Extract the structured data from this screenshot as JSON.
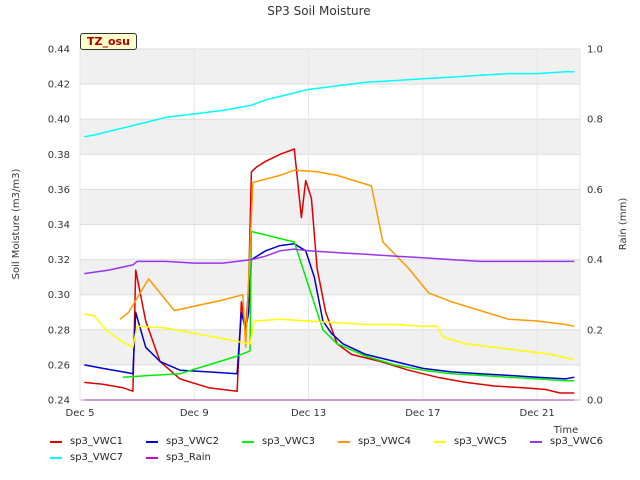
{
  "chart_data": {
    "type": "line",
    "title": "SP3 Soil Moisture",
    "ylabel": "Soil Moisture (m3/m3)",
    "y2label": "Rain (mm)",
    "xlabel": "Time",
    "badge": "TZ_osu",
    "x_ticks": [
      "Dec 5",
      "Dec 9",
      "Dec 13",
      "Dec 17",
      "Dec 21"
    ],
    "xlim": [
      5,
      22.5
    ],
    "ylim": [
      0.24,
      0.44
    ],
    "y_ticks": [
      "0.24",
      "0.26",
      "0.28",
      "0.30",
      "0.32",
      "0.34",
      "0.36",
      "0.38",
      "0.40",
      "0.42",
      "0.44"
    ],
    "y2lim": [
      0.0,
      1.0
    ],
    "y2_ticks": [
      "0.0",
      "0.2",
      "0.4",
      "0.6",
      "0.8",
      "1.0"
    ],
    "grid": true,
    "legend_position": "bottom",
    "series": [
      {
        "name": "sp3_VWC1",
        "color": "#dd0000",
        "axis": "left",
        "x": [
          5.15,
          5.8,
          6.5,
          6.85,
          6.95,
          7.3,
          7.8,
          8.5,
          9.5,
          10.5,
          10.65,
          10.8,
          10.9,
          11.0,
          11.2,
          11.5,
          12.0,
          12.5,
          12.75,
          12.9,
          13.1,
          13.3,
          13.6,
          14.0,
          14.5,
          15.5,
          16.5,
          17.5,
          18.5,
          19.5,
          20.5,
          21.3,
          21.8,
          22.0,
          22.3
        ],
        "y": [
          0.25,
          0.249,
          0.247,
          0.245,
          0.314,
          0.285,
          0.262,
          0.252,
          0.247,
          0.245,
          0.296,
          0.28,
          0.305,
          0.37,
          0.373,
          0.376,
          0.38,
          0.383,
          0.344,
          0.365,
          0.355,
          0.315,
          0.29,
          0.272,
          0.266,
          0.262,
          0.257,
          0.253,
          0.25,
          0.248,
          0.247,
          0.246,
          0.244,
          0.244,
          0.244
        ]
      },
      {
        "name": "sp3_VWC2",
        "color": "#0000cc",
        "axis": "left",
        "x": [
          5.15,
          5.8,
          6.5,
          6.85,
          6.95,
          7.3,
          7.8,
          8.5,
          9.5,
          10.5,
          10.65,
          10.8,
          10.9,
          11.0,
          11.5,
          12.0,
          12.5,
          12.9,
          13.2,
          13.5,
          13.8,
          14.2,
          15.0,
          16.0,
          17.0,
          18.0,
          19.0,
          20.0,
          21.0,
          22.0,
          22.3
        ],
        "y": [
          0.26,
          0.258,
          0.256,
          0.255,
          0.29,
          0.27,
          0.262,
          0.257,
          0.256,
          0.255,
          0.29,
          0.28,
          0.29,
          0.32,
          0.325,
          0.328,
          0.329,
          0.325,
          0.31,
          0.285,
          0.278,
          0.272,
          0.266,
          0.262,
          0.258,
          0.256,
          0.255,
          0.254,
          0.253,
          0.252,
          0.253
        ]
      },
      {
        "name": "sp3_VWC3",
        "color": "#00ee00",
        "axis": "left",
        "x": [
          6.5,
          7.5,
          8.5,
          9.5,
          10.5,
          10.95,
          11.0,
          11.5,
          12.0,
          12.5,
          12.9,
          13.2,
          13.5,
          14.0,
          15.0,
          16.0,
          17.0,
          18.0,
          19.0,
          20.0,
          21.0,
          22.0,
          22.3
        ],
        "y": [
          0.253,
          0.254,
          0.255,
          0.26,
          0.265,
          0.268,
          0.336,
          0.334,
          0.332,
          0.33,
          0.31,
          0.295,
          0.28,
          0.272,
          0.265,
          0.26,
          0.257,
          0.255,
          0.254,
          0.253,
          0.252,
          0.251,
          0.251
        ]
      },
      {
        "name": "sp3_VWC4",
        "color": "#ff9900",
        "axis": "left",
        "x": [
          6.4,
          6.7,
          7.4,
          8.3,
          10.0,
          10.7,
          10.8,
          11.05,
          12.0,
          12.5,
          13.3,
          14.0,
          14.8,
          15.2,
          15.6,
          16.5,
          17.2,
          18.0,
          19.0,
          20.0,
          21.0,
          22.0,
          22.3
        ],
        "y": [
          0.286,
          0.29,
          0.309,
          0.291,
          0.297,
          0.3,
          0.27,
          0.364,
          0.368,
          0.371,
          0.37,
          0.368,
          0.364,
          0.362,
          0.33,
          0.315,
          0.301,
          0.296,
          0.291,
          0.286,
          0.285,
          0.283,
          0.282
        ]
      },
      {
        "name": "sp3_VWC5",
        "color": "#ffff00",
        "axis": "left",
        "x": [
          5.15,
          5.5,
          5.9,
          6.5,
          6.85,
          7.0,
          8.0,
          9.0,
          10.0,
          10.95,
          11.1,
          12.0,
          13.0,
          14.0,
          15.0,
          16.0,
          17.0,
          17.5,
          17.7,
          18.5,
          19.5,
          20.5,
          21.5,
          22.0,
          22.3
        ],
        "y": [
          0.289,
          0.288,
          0.28,
          0.273,
          0.27,
          0.282,
          0.281,
          0.278,
          0.275,
          0.272,
          0.285,
          0.286,
          0.285,
          0.284,
          0.283,
          0.283,
          0.282,
          0.282,
          0.276,
          0.272,
          0.27,
          0.268,
          0.266,
          0.264,
          0.263
        ]
      },
      {
        "name": "sp3_VWC6",
        "color": "#9933ee",
        "axis": "left",
        "x": [
          5.15,
          6.0,
          6.85,
          7.0,
          8.0,
          9.0,
          10.0,
          10.5,
          11.0,
          11.5,
          12.0,
          12.5,
          13.0,
          14.0,
          15.0,
          16.0,
          17.0,
          18.0,
          19.0,
          20.0,
          21.0,
          22.0,
          22.3
        ],
        "y": [
          0.312,
          0.314,
          0.317,
          0.319,
          0.319,
          0.318,
          0.318,
          0.319,
          0.32,
          0.322,
          0.325,
          0.326,
          0.325,
          0.324,
          0.323,
          0.322,
          0.321,
          0.32,
          0.319,
          0.319,
          0.319,
          0.319,
          0.319
        ]
      },
      {
        "name": "sp3_VWC7",
        "color": "#00ffff",
        "axis": "left",
        "x": [
          5.15,
          5.5,
          6.0,
          7.0,
          7.5,
          8.0,
          9.0,
          10.0,
          11.0,
          11.5,
          12.0,
          12.5,
          13.0,
          13.5,
          14.0,
          15.0,
          16.0,
          17.0,
          18.0,
          19.0,
          20.0,
          21.0,
          22.0,
          22.3
        ],
        "y": [
          0.39,
          0.391,
          0.393,
          0.397,
          0.399,
          0.401,
          0.403,
          0.405,
          0.408,
          0.411,
          0.413,
          0.415,
          0.417,
          0.418,
          0.419,
          0.421,
          0.422,
          0.423,
          0.424,
          0.425,
          0.426,
          0.426,
          0.427,
          0.427
        ]
      },
      {
        "name": "sp3_Rain",
        "color": "#cc00cc",
        "axis": "right",
        "x": [
          5.15,
          22.3
        ],
        "y": [
          0.0,
          0.0
        ]
      }
    ]
  }
}
